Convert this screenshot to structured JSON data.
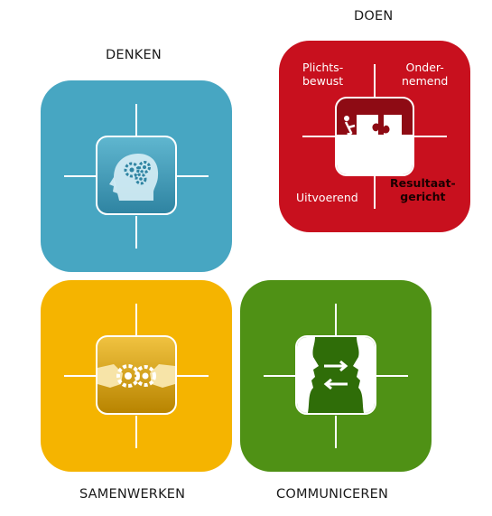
{
  "labels": {
    "doen": "DOEN",
    "denken": "DENKEN",
    "samenwerken": "SAMENWERKEN",
    "communiceren": "COMMUNICEREN"
  },
  "doen_traits": {
    "top_left_line1": "Plichts-",
    "top_left_line2": "bewust",
    "top_right_line1": "Onder-",
    "top_right_line2": "nemend",
    "bottom_left": "Uitvoerend",
    "bottom_right_line1": "Resultaat-",
    "bottom_right_line2": "gericht"
  },
  "colors": {
    "denken": "#47a6c2",
    "doen": "#c8101e",
    "samenwerken": "#f5b400",
    "communiceren": "#4f9115"
  },
  "icons": {
    "denken": "head-gears-icon",
    "doen": "puzzle-push-icon",
    "samenwerken": "handshake-gears-icon",
    "communiceren": "faces-exchange-icon"
  }
}
